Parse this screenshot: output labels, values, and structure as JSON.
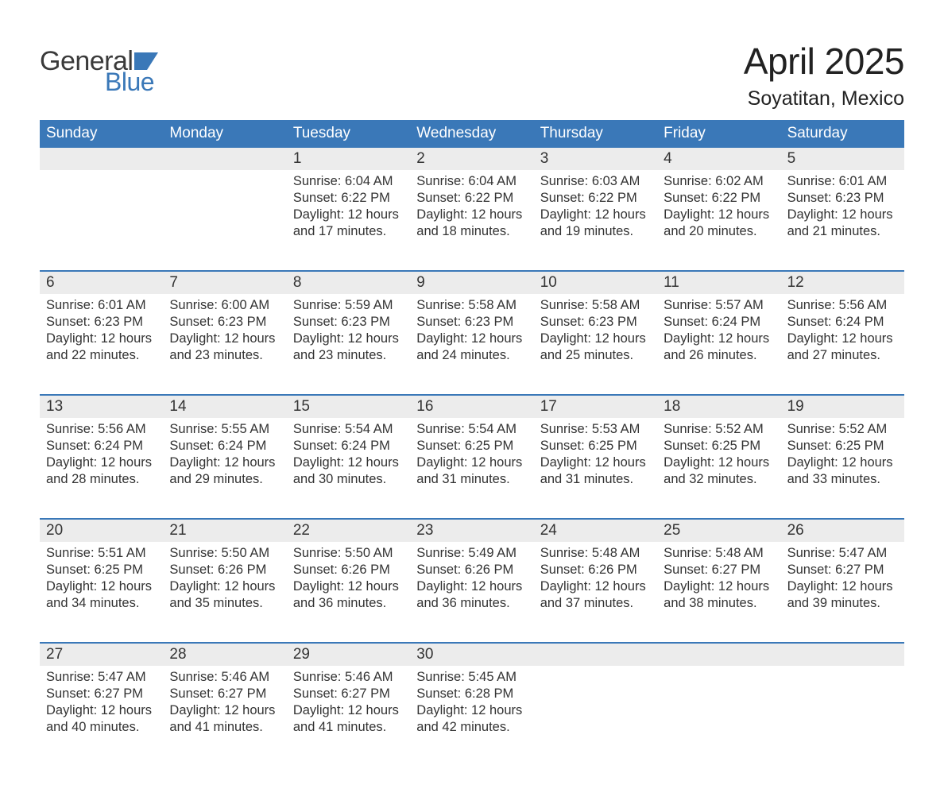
{
  "logo": {
    "text_general": "General",
    "text_blue": "Blue",
    "flag_color": "#3a78b8"
  },
  "title": {
    "month": "April 2025",
    "location": "Soyatitan, Mexico"
  },
  "styling": {
    "header_bg": "#3a78b8",
    "header_text": "#ffffff",
    "daynum_bg": "#ececec",
    "week_divider": "#3a78b8",
    "body_text": "#333333",
    "page_bg": "#ffffff",
    "title_fontsize": 46,
    "location_fontsize": 25,
    "weekday_fontsize": 19,
    "daynum_fontsize": 19,
    "content_fontsize": 16.5
  },
  "weekdays": [
    "Sunday",
    "Monday",
    "Tuesday",
    "Wednesday",
    "Thursday",
    "Friday",
    "Saturday"
  ],
  "labels": {
    "sunrise": "Sunrise: ",
    "sunset": "Sunset: ",
    "daylight": "Daylight: "
  },
  "weeks": [
    [
      null,
      null,
      {
        "n": "1",
        "sunrise": "6:04 AM",
        "sunset": "6:22 PM",
        "daylight": "12 hours and 17 minutes."
      },
      {
        "n": "2",
        "sunrise": "6:04 AM",
        "sunset": "6:22 PM",
        "daylight": "12 hours and 18 minutes."
      },
      {
        "n": "3",
        "sunrise": "6:03 AM",
        "sunset": "6:22 PM",
        "daylight": "12 hours and 19 minutes."
      },
      {
        "n": "4",
        "sunrise": "6:02 AM",
        "sunset": "6:22 PM",
        "daylight": "12 hours and 20 minutes."
      },
      {
        "n": "5",
        "sunrise": "6:01 AM",
        "sunset": "6:23 PM",
        "daylight": "12 hours and 21 minutes."
      }
    ],
    [
      {
        "n": "6",
        "sunrise": "6:01 AM",
        "sunset": "6:23 PM",
        "daylight": "12 hours and 22 minutes."
      },
      {
        "n": "7",
        "sunrise": "6:00 AM",
        "sunset": "6:23 PM",
        "daylight": "12 hours and 23 minutes."
      },
      {
        "n": "8",
        "sunrise": "5:59 AM",
        "sunset": "6:23 PM",
        "daylight": "12 hours and 23 minutes."
      },
      {
        "n": "9",
        "sunrise": "5:58 AM",
        "sunset": "6:23 PM",
        "daylight": "12 hours and 24 minutes."
      },
      {
        "n": "10",
        "sunrise": "5:58 AM",
        "sunset": "6:23 PM",
        "daylight": "12 hours and 25 minutes."
      },
      {
        "n": "11",
        "sunrise": "5:57 AM",
        "sunset": "6:24 PM",
        "daylight": "12 hours and 26 minutes."
      },
      {
        "n": "12",
        "sunrise": "5:56 AM",
        "sunset": "6:24 PM",
        "daylight": "12 hours and 27 minutes."
      }
    ],
    [
      {
        "n": "13",
        "sunrise": "5:56 AM",
        "sunset": "6:24 PM",
        "daylight": "12 hours and 28 minutes."
      },
      {
        "n": "14",
        "sunrise": "5:55 AM",
        "sunset": "6:24 PM",
        "daylight": "12 hours and 29 minutes."
      },
      {
        "n": "15",
        "sunrise": "5:54 AM",
        "sunset": "6:24 PM",
        "daylight": "12 hours and 30 minutes."
      },
      {
        "n": "16",
        "sunrise": "5:54 AM",
        "sunset": "6:25 PM",
        "daylight": "12 hours and 31 minutes."
      },
      {
        "n": "17",
        "sunrise": "5:53 AM",
        "sunset": "6:25 PM",
        "daylight": "12 hours and 31 minutes."
      },
      {
        "n": "18",
        "sunrise": "5:52 AM",
        "sunset": "6:25 PM",
        "daylight": "12 hours and 32 minutes."
      },
      {
        "n": "19",
        "sunrise": "5:52 AM",
        "sunset": "6:25 PM",
        "daylight": "12 hours and 33 minutes."
      }
    ],
    [
      {
        "n": "20",
        "sunrise": "5:51 AM",
        "sunset": "6:25 PM",
        "daylight": "12 hours and 34 minutes."
      },
      {
        "n": "21",
        "sunrise": "5:50 AM",
        "sunset": "6:26 PM",
        "daylight": "12 hours and 35 minutes."
      },
      {
        "n": "22",
        "sunrise": "5:50 AM",
        "sunset": "6:26 PM",
        "daylight": "12 hours and 36 minutes."
      },
      {
        "n": "23",
        "sunrise": "5:49 AM",
        "sunset": "6:26 PM",
        "daylight": "12 hours and 36 minutes."
      },
      {
        "n": "24",
        "sunrise": "5:48 AM",
        "sunset": "6:26 PM",
        "daylight": "12 hours and 37 minutes."
      },
      {
        "n": "25",
        "sunrise": "5:48 AM",
        "sunset": "6:27 PM",
        "daylight": "12 hours and 38 minutes."
      },
      {
        "n": "26",
        "sunrise": "5:47 AM",
        "sunset": "6:27 PM",
        "daylight": "12 hours and 39 minutes."
      }
    ],
    [
      {
        "n": "27",
        "sunrise": "5:47 AM",
        "sunset": "6:27 PM",
        "daylight": "12 hours and 40 minutes."
      },
      {
        "n": "28",
        "sunrise": "5:46 AM",
        "sunset": "6:27 PM",
        "daylight": "12 hours and 41 minutes."
      },
      {
        "n": "29",
        "sunrise": "5:46 AM",
        "sunset": "6:27 PM",
        "daylight": "12 hours and 41 minutes."
      },
      {
        "n": "30",
        "sunrise": "5:45 AM",
        "sunset": "6:28 PM",
        "daylight": "12 hours and 42 minutes."
      },
      null,
      null,
      null
    ]
  ]
}
